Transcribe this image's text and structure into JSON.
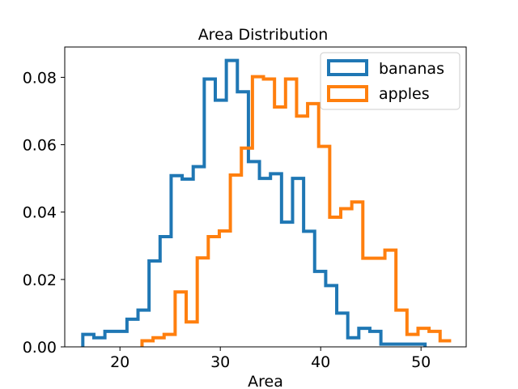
{
  "chart_data": {
    "type": "histogram-step",
    "title": "Area Distribution",
    "xlabel": "Area",
    "ylabel": "",
    "xlim": [
      14.5,
      54.5
    ],
    "ylim": [
      0,
      0.089
    ],
    "xticks": [
      20,
      30,
      40,
      50
    ],
    "yticks": [
      0.0,
      0.02,
      0.04,
      0.06,
      0.08
    ],
    "ytick_labels": [
      "0.00",
      "0.02",
      "0.04",
      "0.06",
      "0.08"
    ],
    "xtick_labels": [
      "20",
      "30",
      "40",
      "50"
    ],
    "grid": false,
    "legend_position": "top-right",
    "series": [
      {
        "name": "bananas",
        "color": "#1f77b4",
        "bin_edges": [
          16.3,
          17.4,
          18.5,
          19.6,
          20.7,
          21.8,
          22.9,
          24.0,
          25.1,
          26.2,
          27.3,
          28.4,
          29.5,
          30.6,
          31.7,
          32.8,
          33.9,
          35.0,
          36.1,
          37.2,
          38.3,
          39.4,
          40.5,
          41.6,
          42.7,
          43.8,
          44.9,
          46.0,
          47.1,
          48.2,
          49.3,
          50.4
        ],
        "values": [
          0.0037,
          0.0027,
          0.0046,
          0.0046,
          0.0082,
          0.0109,
          0.0255,
          0.0327,
          0.0508,
          0.0498,
          0.0535,
          0.0795,
          0.0732,
          0.085,
          0.0757,
          0.055,
          0.05,
          0.0514,
          0.037,
          0.05,
          0.0343,
          0.0224,
          0.0182,
          0.01,
          0.0027,
          0.0055,
          0.0046,
          0.0008,
          0.0008,
          0.0008,
          0.0008
        ]
      },
      {
        "name": "apples",
        "color": "#ff7f0e",
        "bin_edges": [
          22.2,
          23.3,
          24.4,
          25.5,
          26.6,
          27.7,
          28.8,
          29.9,
          31.0,
          32.1,
          33.2,
          34.3,
          35.4,
          36.5,
          37.6,
          38.7,
          39.8,
          40.9,
          42.0,
          43.1,
          44.2,
          45.3,
          46.4,
          47.5,
          48.6,
          49.7,
          50.8,
          51.9,
          53.0
        ],
        "values": [
          0.0018,
          0.0027,
          0.0037,
          0.0163,
          0.0074,
          0.0264,
          0.0327,
          0.0344,
          0.051,
          0.059,
          0.0802,
          0.0795,
          0.0712,
          0.0795,
          0.0685,
          0.0722,
          0.0595,
          0.0385,
          0.041,
          0.043,
          0.0263,
          0.0263,
          0.0287,
          0.0109,
          0.0037,
          0.0055,
          0.0046,
          0.0018,
          0.0018
        ]
      }
    ]
  }
}
